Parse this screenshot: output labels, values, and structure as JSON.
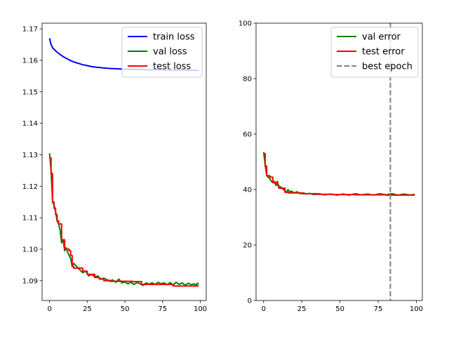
{
  "chart_data": [
    {
      "type": "line",
      "title": "",
      "xlabel": "",
      "ylabel": "",
      "xlim": [
        -4.95,
        103.95
      ],
      "ylim": [
        1.0837,
        1.1718
      ],
      "xticks": [
        0,
        25,
        50,
        75,
        100
      ],
      "yticks": [
        1.09,
        1.1,
        1.11,
        1.12,
        1.13,
        1.14,
        1.15,
        1.16,
        1.17
      ],
      "ytick_labels": [
        "1.09",
        "1.10",
        "1.11",
        "1.12",
        "1.13",
        "1.14",
        "1.15",
        "1.16",
        "1.17"
      ],
      "legend_position": "top-right",
      "series": [
        {
          "name": "train loss",
          "color": "#0000ff",
          "style": "solid",
          "step": false,
          "points": [
            [
              0,
              1.167
            ],
            [
              1,
              1.165
            ],
            [
              2,
              1.164
            ],
            [
              4,
              1.163
            ],
            [
              6,
              1.1622
            ],
            [
              8,
              1.1615
            ],
            [
              10,
              1.1609
            ],
            [
              12,
              1.1604
            ],
            [
              14,
              1.1599
            ],
            [
              16,
              1.1595
            ],
            [
              18,
              1.1592
            ],
            [
              20,
              1.1589
            ],
            [
              22,
              1.1586
            ],
            [
              25,
              1.1583
            ],
            [
              28,
              1.158
            ],
            [
              31,
              1.1578
            ],
            [
              35,
              1.1576
            ],
            [
              40,
              1.1574
            ],
            [
              45,
              1.1573
            ],
            [
              50,
              1.1572
            ],
            [
              55,
              1.1571
            ],
            [
              60,
              1.1571
            ],
            [
              65,
              1.157
            ],
            [
              70,
              1.157
            ],
            [
              75,
              1.157
            ],
            [
              80,
              1.1569
            ],
            [
              85,
              1.1569
            ],
            [
              90,
              1.1569
            ],
            [
              95,
              1.1568
            ],
            [
              99,
              1.1568
            ]
          ]
        },
        {
          "name": "val loss",
          "color": "#008000",
          "style": "solid",
          "step": false,
          "points": [
            [
              0,
              1.1305
            ],
            [
              1,
              1.125
            ],
            [
              2,
              1.115
            ],
            [
              3,
              1.114
            ],
            [
              4,
              1.112
            ],
            [
              5,
              1.109
            ],
            [
              6,
              1.108
            ],
            [
              7,
              1.106
            ],
            [
              8,
              1.102
            ],
            [
              9,
              1.103
            ],
            [
              10,
              1.0995
            ],
            [
              11,
              1.1005
            ],
            [
              12,
              1.099
            ],
            [
              13,
              1.098
            ],
            [
              14,
              1.097
            ],
            [
              15,
              1.0945
            ],
            [
              16,
              1.0955
            ],
            [
              17,
              1.095
            ],
            [
              18,
              1.0945
            ],
            [
              20,
              1.0935
            ],
            [
              22,
              1.0925
            ],
            [
              24,
              1.093
            ],
            [
              26,
              1.0915
            ],
            [
              28,
              1.092
            ],
            [
              30,
              1.0912
            ],
            [
              32,
              1.0915
            ],
            [
              34,
              1.0905
            ],
            [
              36,
              1.0908
            ],
            [
              38,
              1.0903
            ],
            [
              40,
              1.09
            ],
            [
              42,
              1.0902
            ],
            [
              44,
              1.0895
            ],
            [
              46,
              1.0905
            ],
            [
              48,
              1.0893
            ],
            [
              50,
              1.0896
            ],
            [
              52,
              1.089
            ],
            [
              54,
              1.0895
            ],
            [
              56,
              1.0888
            ],
            [
              58,
              1.0894
            ],
            [
              60,
              1.089
            ],
            [
              62,
              1.0885
            ],
            [
              64,
              1.0893
            ],
            [
              66,
              1.0889
            ],
            [
              68,
              1.0893
            ],
            [
              70,
              1.0888
            ],
            [
              72,
              1.0895
            ],
            [
              74,
              1.089
            ],
            [
              76,
              1.0893
            ],
            [
              78,
              1.0887
            ],
            [
              80,
              1.0894
            ],
            [
              82,
              1.0886
            ],
            [
              84,
              1.0895
            ],
            [
              86,
              1.0888
            ],
            [
              88,
              1.0893
            ],
            [
              90,
              1.0885
            ],
            [
              92,
              1.0892
            ],
            [
              94,
              1.0887
            ],
            [
              96,
              1.089
            ],
            [
              97,
              1.0884
            ],
            [
              98,
              1.0892
            ],
            [
              99,
              1.0888
            ]
          ]
        },
        {
          "name": "test loss",
          "color": "#ff0000",
          "style": "solid",
          "step": true,
          "points": [
            [
              0,
              1.129
            ],
            [
              1,
              1.124
            ],
            [
              2,
              1.115
            ],
            [
              3,
              1.113
            ],
            [
              4,
              1.111
            ],
            [
              5,
              1.109
            ],
            [
              6,
              1.108
            ],
            [
              8,
              1.103
            ],
            [
              9,
              1.103
            ],
            [
              10,
              1.1
            ],
            [
              13,
              1.0995
            ],
            [
              14,
              1.098
            ],
            [
              15,
              1.0945
            ],
            [
              16,
              1.094
            ],
            [
              21,
              1.094
            ],
            [
              22,
              1.093
            ],
            [
              25,
              1.092
            ],
            [
              30,
              1.091
            ],
            [
              33,
              1.0905
            ],
            [
              36,
              1.09
            ],
            [
              40,
              1.0898
            ],
            [
              45,
              1.0898
            ],
            [
              55,
              1.0897
            ],
            [
              60,
              1.0897
            ],
            [
              61,
              1.0888
            ],
            [
              70,
              1.0888
            ],
            [
              80,
              1.0888
            ],
            [
              82,
              1.0883
            ],
            [
              90,
              1.0883
            ],
            [
              99,
              1.0883
            ]
          ]
        }
      ]
    },
    {
      "type": "line",
      "title": "",
      "xlabel": "",
      "ylabel": "",
      "xlim": [
        -4.95,
        103.95
      ],
      "ylim": [
        0,
        100
      ],
      "xticks": [
        0,
        25,
        50,
        75,
        100
      ],
      "yticks": [
        0,
        20,
        40,
        60,
        80,
        100
      ],
      "ytick_labels": [
        "0",
        "20",
        "40",
        "60",
        "80",
        "100"
      ],
      "legend_position": "top-right",
      "series": [
        {
          "name": "val error",
          "color": "#008000",
          "style": "solid",
          "step": false,
          "points": [
            [
              0,
              53.5
            ],
            [
              1,
              49.0
            ],
            [
              2,
              45.0
            ],
            [
              3,
              44.5
            ],
            [
              4,
              44.0
            ],
            [
              5,
              43.0
            ],
            [
              6,
              42.5
            ],
            [
              7,
              43.0
            ],
            [
              8,
              41.5
            ],
            [
              9,
              43.0
            ],
            [
              10,
              40.5
            ],
            [
              11,
              41.0
            ],
            [
              12,
              40.5
            ],
            [
              13,
              40.0
            ],
            [
              14,
              39.5
            ],
            [
              15,
              39.0
            ],
            [
              16,
              40.0
            ],
            [
              17,
              39.0
            ],
            [
              18,
              39.5
            ],
            [
              20,
              38.8
            ],
            [
              22,
              39.2
            ],
            [
              24,
              38.5
            ],
            [
              26,
              38.8
            ],
            [
              28,
              38.4
            ],
            [
              30,
              38.6
            ],
            [
              33,
              38.2
            ],
            [
              36,
              38.5
            ],
            [
              40,
              38.1
            ],
            [
              44,
              38.4
            ],
            [
              48,
              38.0
            ],
            [
              52,
              38.4
            ],
            [
              56,
              38.0
            ],
            [
              60,
              38.5
            ],
            [
              64,
              38.1
            ],
            [
              68,
              38.4
            ],
            [
              72,
              38.0
            ],
            [
              76,
              38.5
            ],
            [
              80,
              38.1
            ],
            [
              84,
              38.5
            ],
            [
              88,
              38.0
            ],
            [
              92,
              38.4
            ],
            [
              96,
              38.0
            ],
            [
              99,
              38.3
            ]
          ]
        },
        {
          "name": "test error",
          "color": "#ff0000",
          "style": "solid",
          "step": true,
          "points": [
            [
              0,
              53.0
            ],
            [
              1,
              48.5
            ],
            [
              2,
              45.0
            ],
            [
              4,
              44.5
            ],
            [
              6,
              42.5
            ],
            [
              9,
              41.5
            ],
            [
              10,
              40.5
            ],
            [
              14,
              39.0
            ],
            [
              16,
              38.8
            ],
            [
              25,
              38.5
            ],
            [
              35,
              38.3
            ],
            [
              45,
              38.2
            ],
            [
              60,
              38.1
            ],
            [
              80,
              38.0
            ],
            [
              99,
              38.0
            ]
          ]
        },
        {
          "name": "best epoch",
          "color": "#808080",
          "style": "dashed",
          "vertical_x": 83
        }
      ]
    }
  ]
}
